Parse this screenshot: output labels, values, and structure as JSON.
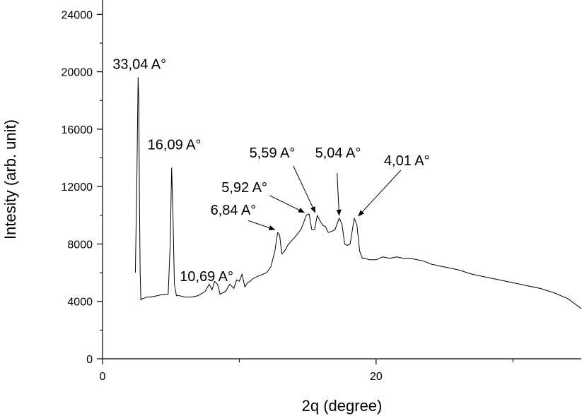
{
  "chart_data": {
    "type": "line",
    "title": "",
    "xlabel": "2q (degree)",
    "ylabel": "Intesity (arb. unit)",
    "xlim": [
      0,
      35
    ],
    "ylim": [
      0,
      25000
    ],
    "x_ticks": [
      0,
      20
    ],
    "x_tick_labels": [
      "0",
      "20"
    ],
    "x_minor_ticks": [
      10,
      30
    ],
    "y_ticks": [
      0,
      4000,
      8000,
      12000,
      16000,
      20000,
      24000
    ],
    "y_tick_labels": [
      "0",
      "4000",
      "8000",
      "12000",
      "16000",
      "20000",
      "24000"
    ],
    "grid": false,
    "legend": "none",
    "series": [
      {
        "color": "#000000",
        "x": [
          2.4,
          2.5,
          2.6,
          2.65,
          2.7,
          2.75,
          2.8,
          2.9,
          3.0,
          3.2,
          3.5,
          4.0,
          4.5,
          4.8,
          4.95,
          5.05,
          5.15,
          5.25,
          5.4,
          5.6,
          6.0,
          6.5,
          7.0,
          7.5,
          7.8,
          8.0,
          8.2,
          8.4,
          8.6,
          8.8,
          9.0,
          9.3,
          9.6,
          9.8,
          10.0,
          10.2,
          10.4,
          10.6,
          10.8,
          11.0,
          11.5,
          12.0,
          12.3,
          12.6,
          12.8,
          12.95,
          13.1,
          13.3,
          13.6,
          14.0,
          14.5,
          14.9,
          15.1,
          15.3,
          15.5,
          15.7,
          15.9,
          16.1,
          16.3,
          16.5,
          16.8,
          17.0,
          17.3,
          17.5,
          17.7,
          17.9,
          18.1,
          18.4,
          18.6,
          18.8,
          19.0,
          19.2,
          19.5,
          20.0,
          20.5,
          21.0,
          21.5,
          22.0,
          22.5,
          23.0,
          23.5,
          24.0,
          25.0,
          26.0,
          27.0,
          28.0,
          29.0,
          30.0,
          31.0,
          32.0,
          33.0,
          34.0,
          35.0
        ],
        "values": [
          6000,
          12000,
          19600,
          18000,
          11000,
          6000,
          4100,
          4200,
          4200,
          4300,
          4300,
          4400,
          4500,
          4500,
          8000,
          13300,
          10000,
          5200,
          4400,
          4400,
          4300,
          4300,
          4400,
          4700,
          5200,
          4800,
          5400,
          5200,
          4500,
          4600,
          4700,
          5200,
          4900,
          5500,
          5400,
          5900,
          5000,
          5300,
          5400,
          5600,
          5800,
          6000,
          6400,
          7500,
          8800,
          8600,
          7300,
          7500,
          8000,
          8400,
          9000,
          10000,
          10100,
          9000,
          9000,
          10000,
          9600,
          9300,
          9200,
          8800,
          8900,
          9000,
          9800,
          9400,
          8000,
          7900,
          8000,
          9800,
          9300,
          7500,
          7000,
          7000,
          6900,
          6900,
          7100,
          7000,
          7100,
          7000,
          7000,
          6900,
          6800,
          6600,
          6400,
          6200,
          5900,
          5700,
          5500,
          5300,
          5100,
          4900,
          4600,
          4200,
          3500
        ]
      }
    ],
    "annotations": [
      {
        "text": "33,04 A°",
        "x": 2.6,
        "y": 19600,
        "arrow": false
      },
      {
        "text": "16,09 A°",
        "x": 5.05,
        "y": 13300,
        "arrow": false
      },
      {
        "text": "10,69 A°",
        "x": 10.4,
        "y": 5800,
        "arrow": false
      },
      {
        "text": "6,84 A°",
        "x": 12.8,
        "y": 8800,
        "arrow": true
      },
      {
        "text": "5,92 A°",
        "x": 14.9,
        "y": 10000,
        "arrow": true
      },
      {
        "text": "5,59 A°",
        "x": 15.7,
        "y": 10000,
        "arrow": true
      },
      {
        "text": "5,04 A°",
        "x": 17.3,
        "y": 9800,
        "arrow": true
      },
      {
        "text": "4,01 A°",
        "x": 18.4,
        "y": 9800,
        "arrow": true
      }
    ]
  }
}
